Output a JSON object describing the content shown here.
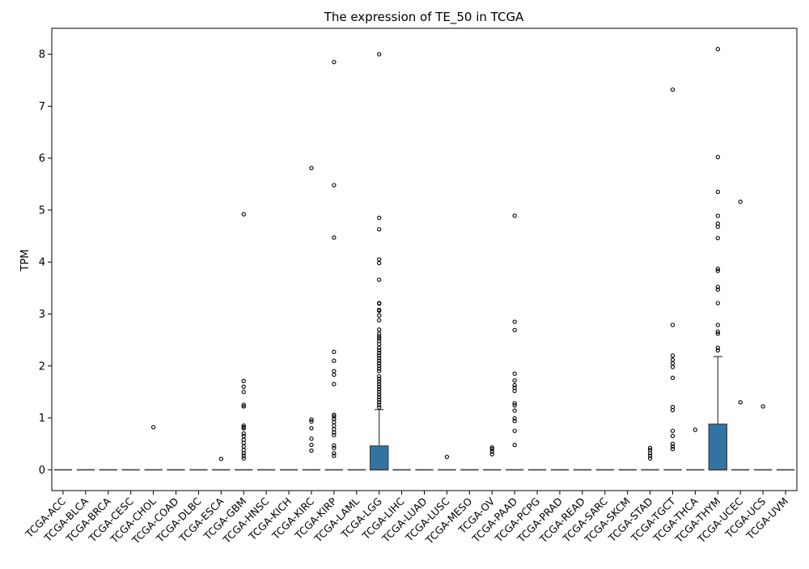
{
  "chart_data": {
    "type": "box",
    "title": "The expression of TE_50 in TCGA",
    "xlabel": "",
    "ylabel": "TPM",
    "ylim": [
      -0.4,
      8.5
    ],
    "yticks": [
      0,
      1,
      2,
      3,
      4,
      5,
      6,
      7,
      8
    ],
    "grid": false,
    "box_color": "#3274a1",
    "categories": [
      "TCGA-ACC",
      "TCGA-BLCA",
      "TCGA-BRCA",
      "TCGA-CESC",
      "TCGA-CHOL",
      "TCGA-COAD",
      "TCGA-DLBC",
      "TCGA-ESCA",
      "TCGA-GBM",
      "TCGA-HNSC",
      "TCGA-KICH",
      "TCGA-KIRC",
      "TCGA-KIRP",
      "TCGA-LAML",
      "TCGA-LGG",
      "TCGA-LIHC",
      "TCGA-LUAD",
      "TCGA-LUSC",
      "TCGA-MESO",
      "TCGA-OV",
      "TCGA-PAAD",
      "TCGA-PCPG",
      "TCGA-PRAD",
      "TCGA-READ",
      "TCGA-SARC",
      "TCGA-SKCM",
      "TCGA-STAD",
      "TCGA-TGCT",
      "TCGA-THCA",
      "TCGA-THYM",
      "TCGA-UCEC",
      "TCGA-UCS",
      "TCGA-UVM"
    ],
    "boxes": [
      {
        "q1": 0,
        "median": 0,
        "q3": 0,
        "whisker_low": 0,
        "whisker_high": 0,
        "outliers": []
      },
      {
        "q1": 0,
        "median": 0,
        "q3": 0,
        "whisker_low": 0,
        "whisker_high": 0,
        "outliers": []
      },
      {
        "q1": 0,
        "median": 0,
        "q3": 0,
        "whisker_low": 0,
        "whisker_high": 0,
        "outliers": []
      },
      {
        "q1": 0,
        "median": 0,
        "q3": 0,
        "whisker_low": 0,
        "whisker_high": 0,
        "outliers": []
      },
      {
        "q1": 0,
        "median": 0,
        "q3": 0,
        "whisker_low": 0,
        "whisker_high": 0,
        "outliers": [
          0.82
        ]
      },
      {
        "q1": 0,
        "median": 0,
        "q3": 0,
        "whisker_low": 0,
        "whisker_high": 0,
        "outliers": []
      },
      {
        "q1": 0,
        "median": 0,
        "q3": 0,
        "whisker_low": 0,
        "whisker_high": 0,
        "outliers": []
      },
      {
        "q1": 0,
        "median": 0,
        "q3": 0,
        "whisker_low": 0,
        "whisker_high": 0,
        "outliers": [
          0.21
        ]
      },
      {
        "q1": 0,
        "median": 0,
        "q3": 0,
        "whisker_low": 0,
        "whisker_high": 0,
        "outliers": [
          4.92,
          1.71,
          1.6,
          1.5,
          1.25,
          1.22,
          0.85,
          0.82,
          0.8,
          0.7,
          0.65,
          0.58,
          0.52,
          0.45,
          0.38,
          0.32,
          0.27,
          0.22
        ]
      },
      {
        "q1": 0,
        "median": 0,
        "q3": 0,
        "whisker_low": 0,
        "whisker_high": 0,
        "outliers": []
      },
      {
        "q1": 0,
        "median": 0,
        "q3": 0,
        "whisker_low": 0,
        "whisker_high": 0,
        "outliers": []
      },
      {
        "q1": 0,
        "median": 0,
        "q3": 0,
        "whisker_low": 0,
        "whisker_high": 0,
        "outliers": [
          5.81,
          0.97,
          0.93,
          0.8,
          0.6,
          0.48,
          0.37
        ]
      },
      {
        "q1": 0,
        "median": 0,
        "q3": 0,
        "whisker_low": 0,
        "whisker_high": 0,
        "outliers": [
          7.85,
          5.48,
          4.47,
          2.27,
          2.1,
          1.9,
          1.83,
          1.65,
          1.06,
          1.03,
          0.98,
          0.92,
          0.85,
          0.78,
          0.72,
          0.67,
          0.47,
          0.42,
          0.32,
          0.27
        ]
      },
      {
        "q1": 0,
        "median": 0,
        "q3": 0,
        "whisker_low": 0,
        "whisker_high": 0,
        "outliers": []
      },
      {
        "q1": 0,
        "median": 0,
        "q3": 0.46,
        "whisker_low": 0,
        "whisker_high": 1.16,
        "outliers": [
          8.0,
          4.85,
          4.63,
          4.05,
          3.98,
          3.66,
          3.21,
          3.2,
          3.08,
          3.06,
          2.97,
          2.88,
          2.7,
          2.62,
          2.57,
          2.53,
          2.48,
          2.42,
          2.35,
          2.3,
          2.25,
          2.2,
          2.15,
          2.1,
          2.05,
          2.0,
          1.95,
          1.9,
          1.8,
          1.75,
          1.7,
          1.65,
          1.6,
          1.55,
          1.5,
          1.45,
          1.4,
          1.35,
          1.3,
          1.25,
          1.2
        ]
      },
      {
        "q1": 0,
        "median": 0,
        "q3": 0,
        "whisker_low": 0,
        "whisker_high": 0,
        "outliers": []
      },
      {
        "q1": 0,
        "median": 0,
        "q3": 0,
        "whisker_low": 0,
        "whisker_high": 0,
        "outliers": []
      },
      {
        "q1": 0,
        "median": 0,
        "q3": 0,
        "whisker_low": 0,
        "whisker_high": 0,
        "outliers": [
          0.25
        ]
      },
      {
        "q1": 0,
        "median": 0,
        "q3": 0,
        "whisker_low": 0,
        "whisker_high": 0,
        "outliers": []
      },
      {
        "q1": 0,
        "median": 0,
        "q3": 0,
        "whisker_low": 0,
        "whisker_high": 0,
        "outliers": [
          0.43,
          0.4,
          0.35,
          0.3
        ]
      },
      {
        "q1": 0,
        "median": 0,
        "q3": 0,
        "whisker_low": 0,
        "whisker_high": 0,
        "outliers": [
          4.89,
          2.85,
          2.69,
          1.85,
          1.72,
          1.63,
          1.58,
          1.52,
          1.28,
          1.24,
          1.14,
          0.99,
          0.94,
          0.75,
          0.48
        ]
      },
      {
        "q1": 0,
        "median": 0,
        "q3": 0,
        "whisker_low": 0,
        "whisker_high": 0,
        "outliers": []
      },
      {
        "q1": 0,
        "median": 0,
        "q3": 0,
        "whisker_low": 0,
        "whisker_high": 0,
        "outliers": []
      },
      {
        "q1": 0,
        "median": 0,
        "q3": 0,
        "whisker_low": 0,
        "whisker_high": 0,
        "outliers": []
      },
      {
        "q1": 0,
        "median": 0,
        "q3": 0,
        "whisker_low": 0,
        "whisker_high": 0,
        "outliers": []
      },
      {
        "q1": 0,
        "median": 0,
        "q3": 0,
        "whisker_low": 0,
        "whisker_high": 0,
        "outliers": []
      },
      {
        "q1": 0,
        "median": 0,
        "q3": 0,
        "whisker_low": 0,
        "whisker_high": 0,
        "outliers": [
          0.42,
          0.38,
          0.32,
          0.27,
          0.22
        ]
      },
      {
        "q1": 0,
        "median": 0,
        "q3": 0,
        "whisker_low": 0,
        "whisker_high": 0,
        "outliers": [
          7.32,
          2.79,
          2.2,
          2.12,
          2.05,
          1.98,
          1.77,
          1.21,
          1.15,
          0.75,
          0.65,
          0.5,
          0.45,
          0.4
        ]
      },
      {
        "q1": 0,
        "median": 0,
        "q3": 0,
        "whisker_low": 0,
        "whisker_high": 0,
        "outliers": [
          0.77
        ]
      },
      {
        "q1": 0,
        "median": 0,
        "q3": 0.88,
        "whisker_low": 0,
        "whisker_high": 2.18,
        "outliers": [
          8.1,
          6.02,
          5.35,
          4.89,
          4.74,
          4.68,
          4.46,
          3.87,
          3.83,
          3.52,
          3.47,
          3.21,
          2.79,
          2.66,
          2.62,
          2.35,
          2.3
        ]
      },
      {
        "q1": 0,
        "median": 0,
        "q3": 0,
        "whisker_low": 0,
        "whisker_high": 0,
        "outliers": [
          5.16,
          1.3
        ]
      },
      {
        "q1": 0,
        "median": 0,
        "q3": 0,
        "whisker_low": 0,
        "whisker_high": 0,
        "outliers": [
          1.22
        ]
      },
      {
        "q1": 0,
        "median": 0,
        "q3": 0,
        "whisker_low": 0,
        "whisker_high": 0,
        "outliers": []
      }
    ]
  }
}
